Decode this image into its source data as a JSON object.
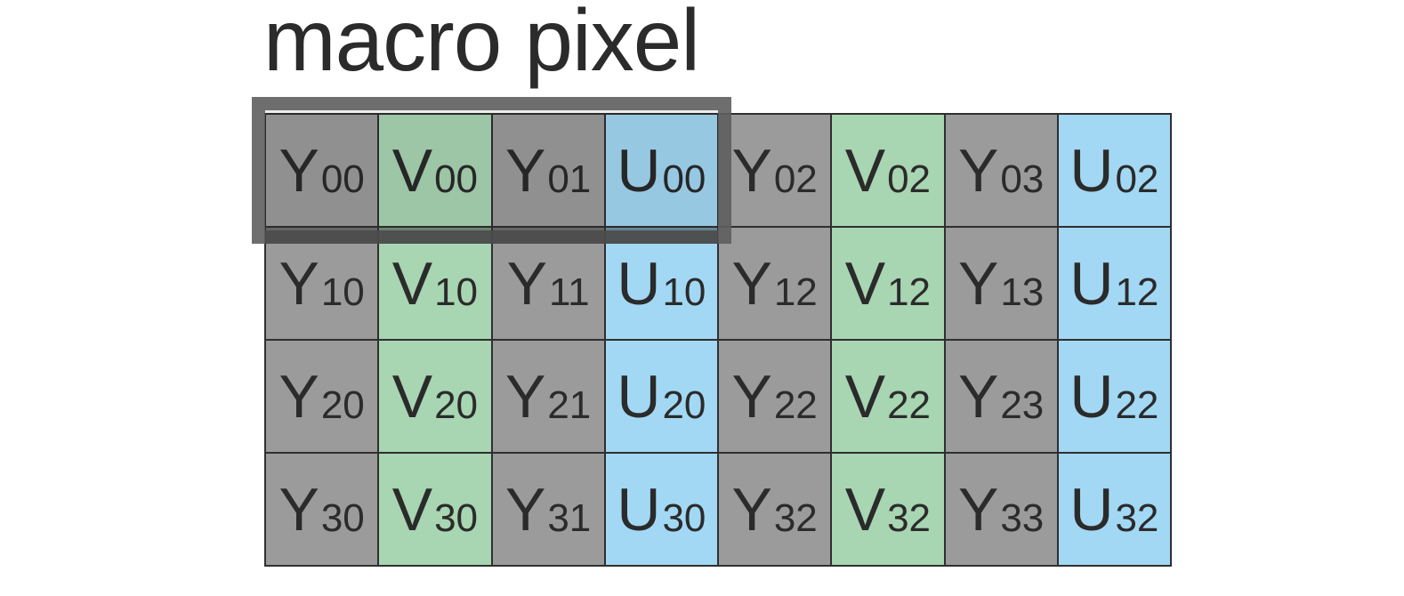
{
  "title": "macro pixel",
  "colors": {
    "Y": "#9b9b9b",
    "V": "#a8d5b2",
    "U": "#a2d8f4",
    "text": "#2b2b2b",
    "highlight": "#5f5f5f"
  },
  "rows": [
    [
      {
        "letter": "Y",
        "sub": "00"
      },
      {
        "letter": "V",
        "sub": "00"
      },
      {
        "letter": "Y",
        "sub": "01"
      },
      {
        "letter": "U",
        "sub": "00"
      },
      {
        "letter": "Y",
        "sub": "02"
      },
      {
        "letter": "V",
        "sub": "02"
      },
      {
        "letter": "Y",
        "sub": "03"
      },
      {
        "letter": "U",
        "sub": "02"
      }
    ],
    [
      {
        "letter": "Y",
        "sub": "10"
      },
      {
        "letter": "V",
        "sub": "10"
      },
      {
        "letter": "Y",
        "sub": "11"
      },
      {
        "letter": "U",
        "sub": "10"
      },
      {
        "letter": "Y",
        "sub": "12"
      },
      {
        "letter": "V",
        "sub": "12"
      },
      {
        "letter": "Y",
        "sub": "13"
      },
      {
        "letter": "U",
        "sub": "12"
      }
    ],
    [
      {
        "letter": "Y",
        "sub": "20"
      },
      {
        "letter": "V",
        "sub": "20"
      },
      {
        "letter": "Y",
        "sub": "21"
      },
      {
        "letter": "U",
        "sub": "20"
      },
      {
        "letter": "Y",
        "sub": "22"
      },
      {
        "letter": "V",
        "sub": "22"
      },
      {
        "letter": "Y",
        "sub": "23"
      },
      {
        "letter": "U",
        "sub": "22"
      }
    ],
    [
      {
        "letter": "Y",
        "sub": "30"
      },
      {
        "letter": "V",
        "sub": "30"
      },
      {
        "letter": "Y",
        "sub": "31"
      },
      {
        "letter": "U",
        "sub": "30"
      },
      {
        "letter": "Y",
        "sub": "32"
      },
      {
        "letter": "V",
        "sub": "32"
      },
      {
        "letter": "Y",
        "sub": "33"
      },
      {
        "letter": "U",
        "sub": "32"
      }
    ]
  ]
}
